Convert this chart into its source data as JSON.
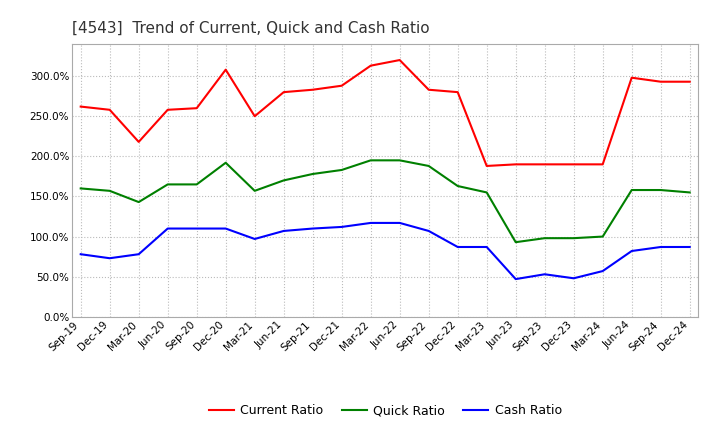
{
  "title": "[4543]  Trend of Current, Quick and Cash Ratio",
  "x_labels": [
    "Sep-19",
    "Dec-19",
    "Mar-20",
    "Jun-20",
    "Sep-20",
    "Dec-20",
    "Mar-21",
    "Jun-21",
    "Sep-21",
    "Dec-21",
    "Mar-22",
    "Jun-22",
    "Sep-22",
    "Dec-22",
    "Mar-23",
    "Jun-23",
    "Sep-23",
    "Dec-23",
    "Mar-24",
    "Jun-24",
    "Sep-24",
    "Dec-24"
  ],
  "current_ratio": [
    262,
    258,
    218,
    258,
    260,
    308,
    250,
    280,
    283,
    288,
    313,
    320,
    283,
    280,
    188,
    190,
    190,
    190,
    190,
    298,
    293,
    293
  ],
  "quick_ratio": [
    160,
    157,
    143,
    165,
    165,
    192,
    157,
    170,
    178,
    183,
    195,
    195,
    188,
    163,
    155,
    93,
    98,
    98,
    100,
    158,
    158,
    155
  ],
  "cash_ratio": [
    78,
    73,
    78,
    110,
    110,
    110,
    97,
    107,
    110,
    112,
    117,
    117,
    107,
    87,
    87,
    47,
    53,
    48,
    57,
    82,
    87,
    87
  ],
  "ylim": [
    0,
    340
  ],
  "yticks": [
    0,
    50,
    100,
    150,
    200,
    250,
    300
  ],
  "current_color": "#FF0000",
  "quick_color": "#008000",
  "cash_color": "#0000FF",
  "bg_color": "#FFFFFF",
  "plot_bg_color": "#FFFFFF",
  "grid_color": "#BBBBBB",
  "line_width": 1.5,
  "title_fontsize": 11,
  "legend_fontsize": 9,
  "tick_fontsize": 7.5
}
